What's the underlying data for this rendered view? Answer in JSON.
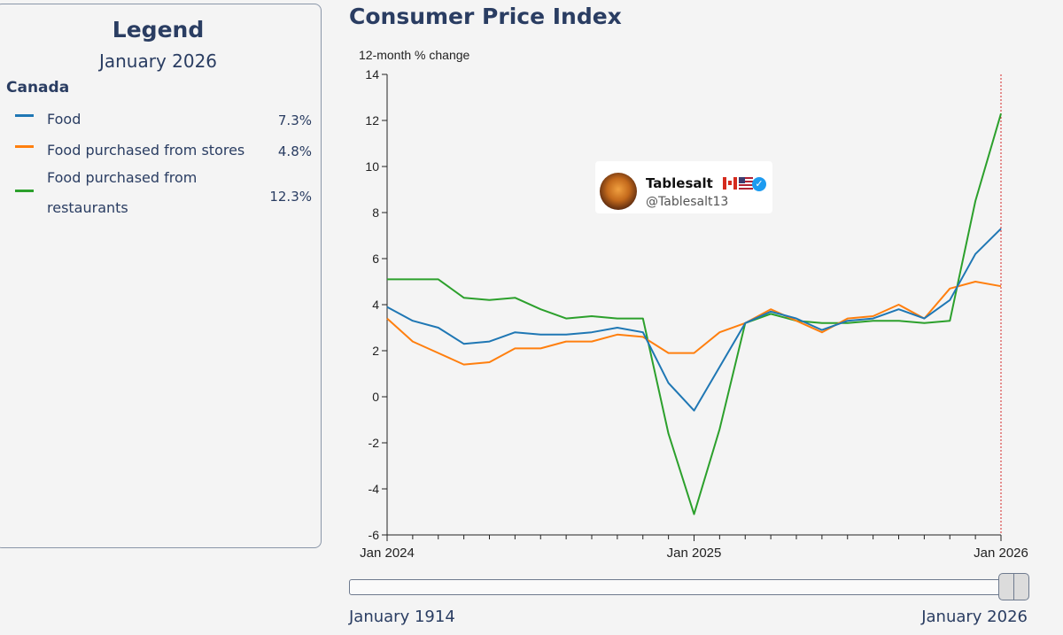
{
  "legend": {
    "title": "Legend",
    "period": "January 2026",
    "region": "Canada",
    "items": [
      {
        "label": "Food",
        "value": "7.3%",
        "color": "#1f77b4"
      },
      {
        "label": "Food purchased from stores",
        "value": "4.8%",
        "color": "#ff7f0e"
      },
      {
        "label": "Food purchased from restaurants",
        "value": "12.3%",
        "color": "#2ca02c"
      }
    ]
  },
  "watermark": {
    "name": "Tablesalt",
    "handle": "@Tablesalt13",
    "icon": "avatar-icon"
  },
  "slider": {
    "start_label": "January 1914",
    "end_label": "January 2026"
  },
  "chart_data": {
    "type": "line",
    "title": "Consumer Price Index",
    "ylabel": "12-month % change",
    "ylim": [
      -6,
      14
    ],
    "yticks": [
      -6,
      -4,
      -2,
      0,
      2,
      4,
      6,
      8,
      10,
      12,
      14
    ],
    "x": [
      "2024-01",
      "2024-02",
      "2024-03",
      "2024-04",
      "2024-05",
      "2024-06",
      "2024-07",
      "2024-08",
      "2024-09",
      "2024-10",
      "2024-11",
      "2024-12",
      "2025-01",
      "2025-02",
      "2025-03",
      "2025-04",
      "2025-05",
      "2025-06",
      "2025-07",
      "2025-08",
      "2025-09",
      "2025-10",
      "2025-11",
      "2025-12",
      "2026-01"
    ],
    "xtick_labels": [
      {
        "x": "2024-01",
        "label": "Jan 2024"
      },
      {
        "x": "2025-01",
        "label": "Jan 2025"
      },
      {
        "x": "2026-01",
        "label": "Jan 2026"
      }
    ],
    "marker_line": "2026-01",
    "marker_color": "#d62728",
    "series": [
      {
        "name": "Food",
        "color": "#1f77b4",
        "values": [
          3.9,
          3.3,
          3.0,
          2.3,
          2.4,
          2.8,
          2.7,
          2.7,
          2.8,
          3.0,
          2.8,
          0.6,
          -0.6,
          1.3,
          3.2,
          3.7,
          3.4,
          2.9,
          3.3,
          3.4,
          3.8,
          3.4,
          4.2,
          6.2,
          7.3
        ]
      },
      {
        "name": "Food purchased from stores",
        "color": "#ff7f0e",
        "values": [
          3.4,
          2.4,
          1.9,
          1.4,
          1.5,
          2.1,
          2.1,
          2.4,
          2.4,
          2.7,
          2.6,
          1.9,
          1.9,
          2.8,
          3.2,
          3.8,
          3.3,
          2.8,
          3.4,
          3.5,
          4.0,
          3.4,
          4.7,
          5.0,
          4.8
        ]
      },
      {
        "name": "Food purchased from restaurants",
        "color": "#2ca02c",
        "values": [
          5.1,
          5.1,
          5.1,
          4.3,
          4.2,
          4.3,
          3.8,
          3.4,
          3.5,
          3.4,
          3.4,
          -1.6,
          -5.1,
          -1.4,
          3.2,
          3.6,
          3.3,
          3.2,
          3.2,
          3.3,
          3.3,
          3.2,
          3.3,
          8.5,
          12.3
        ]
      }
    ]
  }
}
